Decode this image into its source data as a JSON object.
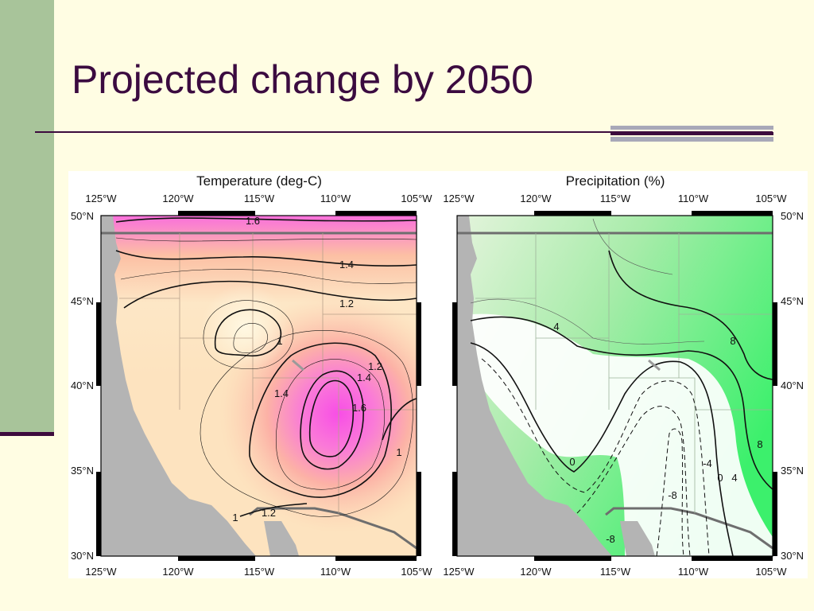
{
  "slide": {
    "title": "Projected change by 2050",
    "colors": {
      "background": "#fffde3",
      "accent_band": "#a8c49a",
      "title_color": "#3b0b40"
    }
  },
  "maps": [
    {
      "title": "Temperature (deg-C)",
      "lon_ticks": [
        "125°W",
        "120°W",
        "115°W",
        "110°W",
        "105°W"
      ],
      "lat_ticks": [
        "50°N",
        "45°N",
        "40°N",
        "35°N",
        "30°N"
      ],
      "contour_labels": [
        "1.6",
        "1.4",
        "1.2",
        "1",
        "1.2",
        "1.4",
        "1.4",
        "1.6",
        "1",
        "1.2",
        "1"
      ],
      "colors": {
        "low": "#fff4d2",
        "mid": "#fcc29a",
        "high": "#f850e8",
        "land": "#b4b4b4"
      }
    },
    {
      "title": "Precipitation (%)",
      "lon_ticks": [
        "125°W",
        "120°W",
        "115°W",
        "110°W",
        "105°W"
      ],
      "lat_ticks": [
        "50°N",
        "45°N",
        "40°N",
        "35°N",
        "30°N"
      ],
      "contour_labels": [
        "4",
        "8",
        "0",
        "8",
        "-4",
        "0",
        "4",
        "-8",
        "-8"
      ],
      "colors": {
        "wet": "#3cf06c",
        "neutral": "#ffffff",
        "dry": "#c9a55a",
        "land": "#b4b4b4"
      }
    }
  ]
}
